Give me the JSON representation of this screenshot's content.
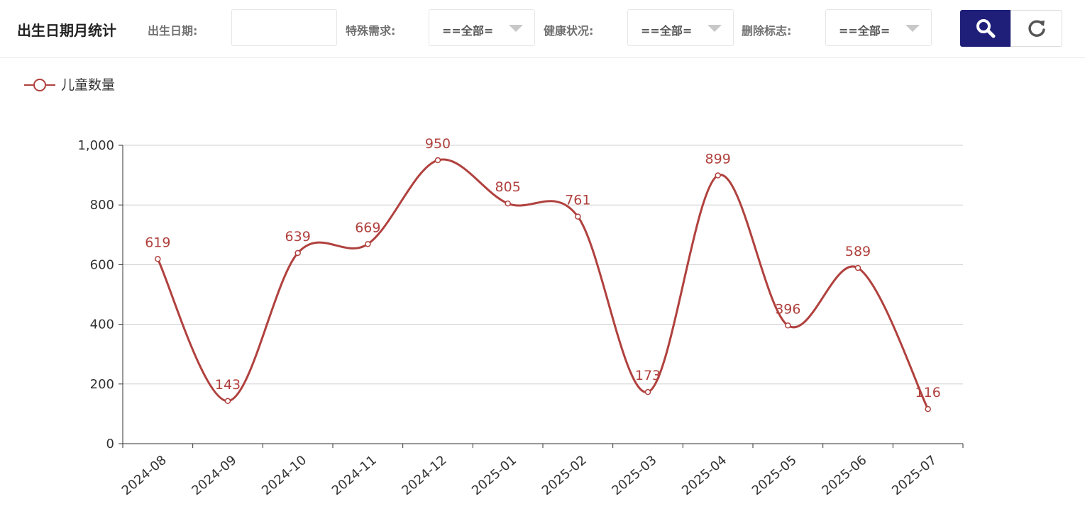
{
  "toolbar": {
    "title": "出生日期月统计",
    "filters": [
      {
        "label": "出生日期:",
        "type": "input",
        "value": ""
      },
      {
        "label": "特殊需求:",
        "type": "select",
        "value": "==全部="
      },
      {
        "label": "健康状况:",
        "type": "select",
        "value": "==全部="
      },
      {
        "label": "删除标志:",
        "type": "select",
        "value": "==全部="
      }
    ],
    "search_icon": "search-icon",
    "reset_icon": "refresh-icon"
  },
  "colors": {
    "series": "#b0413e",
    "primary_button": "#1f1f7a"
  },
  "chart_data": {
    "type": "line",
    "smooth": true,
    "legend": {
      "entries": [
        "儿童数量"
      ],
      "placement": "top-left"
    },
    "categories": [
      "2024-08",
      "2024-09",
      "2024-10",
      "2024-11",
      "2024-12",
      "2025-01",
      "2025-02",
      "2025-03",
      "2025-04",
      "2025-05",
      "2025-06",
      "2025-07"
    ],
    "series": [
      {
        "name": "儿童数量",
        "values": [
          619,
          143,
          639,
          669,
          950,
          805,
          761,
          173,
          899,
          396,
          589,
          116
        ]
      }
    ],
    "ylim": [
      0,
      1000
    ],
    "yticks": [
      "0",
      "200",
      "400",
      "600",
      "800",
      "1,000"
    ],
    "ytick_values": [
      0,
      200,
      400,
      600,
      800,
      1000
    ],
    "grid": true
  }
}
